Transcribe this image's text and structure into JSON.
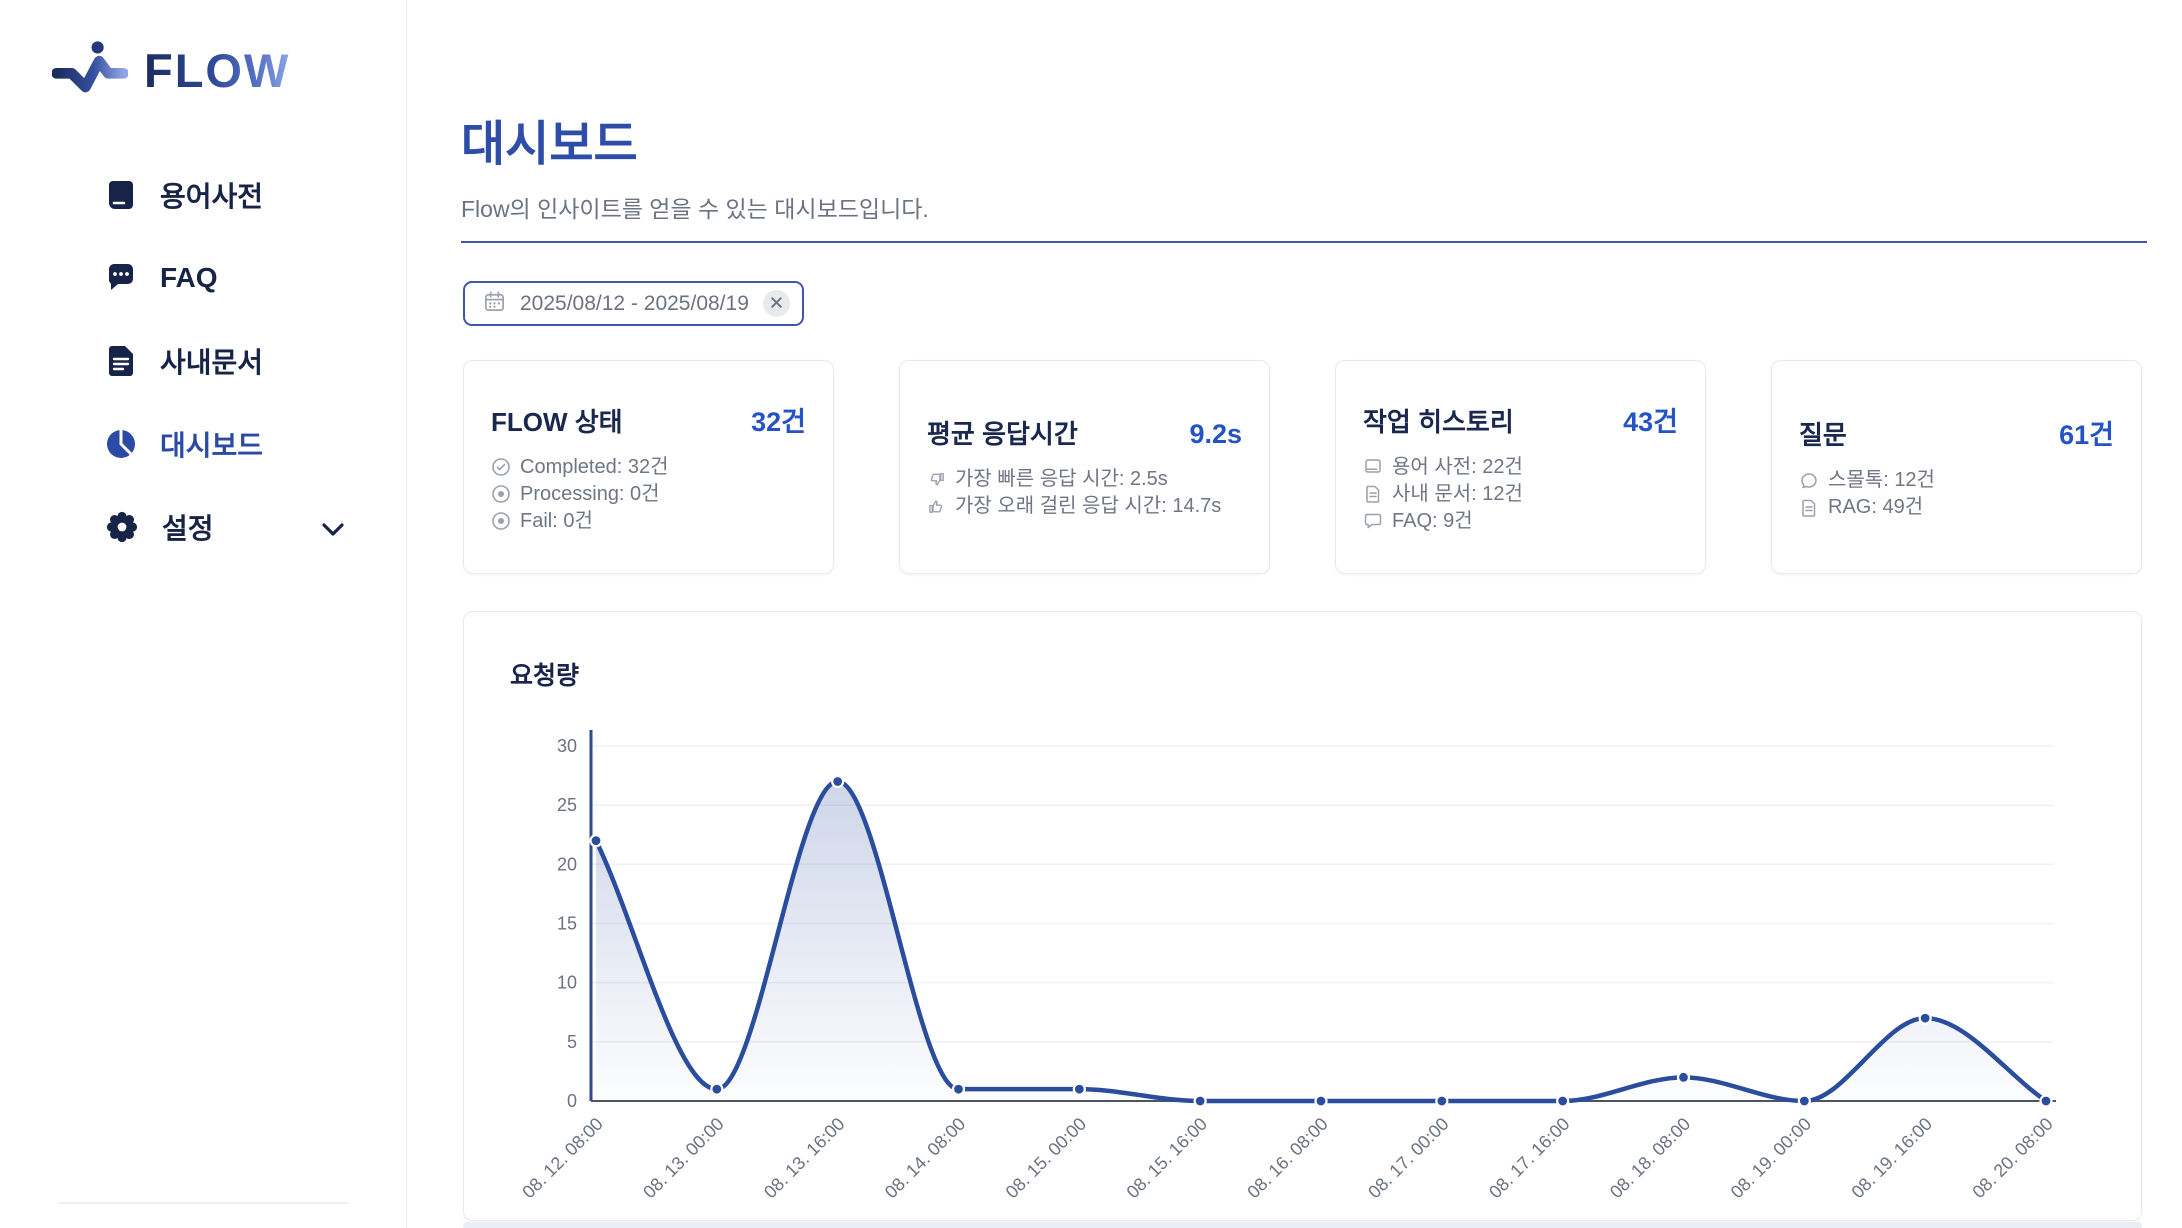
{
  "sidebar": {
    "logo_text": "FLOW",
    "items": [
      {
        "label": "용어사전",
        "icon": "book-icon",
        "active": false
      },
      {
        "label": "FAQ",
        "icon": "chat-icon",
        "active": false
      },
      {
        "label": "사내문서",
        "icon": "document-icon",
        "active": false
      },
      {
        "label": "대시보드",
        "icon": "pie-chart-icon",
        "active": true
      },
      {
        "label": "설정",
        "icon": "gear-icon",
        "active": false,
        "has_submenu": true
      }
    ]
  },
  "header": {
    "title": "대시보드",
    "subtitle": "Flow의 인사이트를 얻을 수 있는 대시보드입니다."
  },
  "filters": {
    "date_range": {
      "value": "2025/08/12 - 2025/08/19",
      "icon": "calendar-icon",
      "clear_icon": "close-icon"
    }
  },
  "stat_cards": [
    {
      "title": "FLOW 상태",
      "value": "32건",
      "lines": [
        {
          "icon": "check-circle-icon",
          "text": "Completed: 32건"
        },
        {
          "icon": "processing-circle-icon",
          "text": "Processing: 0건"
        },
        {
          "icon": "fail-circle-icon",
          "text": "Fail: 0건"
        }
      ]
    },
    {
      "title": "평균 응답시간",
      "value": "9.2s",
      "lines": [
        {
          "icon": "thumbs-down-icon",
          "text": "가장 빠른 응답 시간: 2.5s"
        },
        {
          "icon": "thumbs-up-icon",
          "text": "가장 오래 걸린 응답 시간: 14.7s"
        }
      ]
    },
    {
      "title": "작업 히스토리",
      "value": "43건",
      "lines": [
        {
          "icon": "book-outline-icon",
          "text": "용어 사전: 22건"
        },
        {
          "icon": "document-outline-icon",
          "text": "사내 문서: 12건"
        },
        {
          "icon": "chat-outline-icon",
          "text": "FAQ: 9건"
        }
      ]
    },
    {
      "title": "질문",
      "value": "61건",
      "lines": [
        {
          "icon": "chat-outline-icon",
          "text": "스몰톡: 12건"
        },
        {
          "icon": "document-outline-icon",
          "text": "RAG: 49건"
        }
      ]
    }
  ],
  "chart_data": {
    "type": "line",
    "title": "요청량",
    "x": [
      "08. 12. 08:00",
      "08. 13. 00:00",
      "08. 13. 16:00",
      "08. 14. 08:00",
      "08. 15. 00:00",
      "08. 15. 16:00",
      "08. 16. 08:00",
      "08. 17. 00:00",
      "08. 17. 16:00",
      "08. 18. 08:00",
      "08. 19. 00:00",
      "08. 19. 16:00",
      "08. 20. 08:00"
    ],
    "series": [
      {
        "name": "요청량",
        "values": [
          22,
          1,
          27,
          1,
          1,
          0,
          0,
          0,
          0,
          2,
          0,
          7,
          0
        ]
      }
    ],
    "xlabel": "",
    "ylabel": "",
    "ylim": [
      0,
      30
    ],
    "yticks": [
      0,
      5,
      10,
      15,
      20,
      25,
      30
    ],
    "grid": true,
    "smooth": true,
    "legend": "none",
    "line_color": "#2b4d9e",
    "fill_style": "gradient-area"
  },
  "colors": {
    "accent_blue": "#2d4da8",
    "value_blue": "#2353c5",
    "navy_text": "#1a2850",
    "gray_text": "#6b7280",
    "border": "#e7e9ee",
    "chart_line": "#2b4d9e",
    "axis": "#4b5563"
  }
}
